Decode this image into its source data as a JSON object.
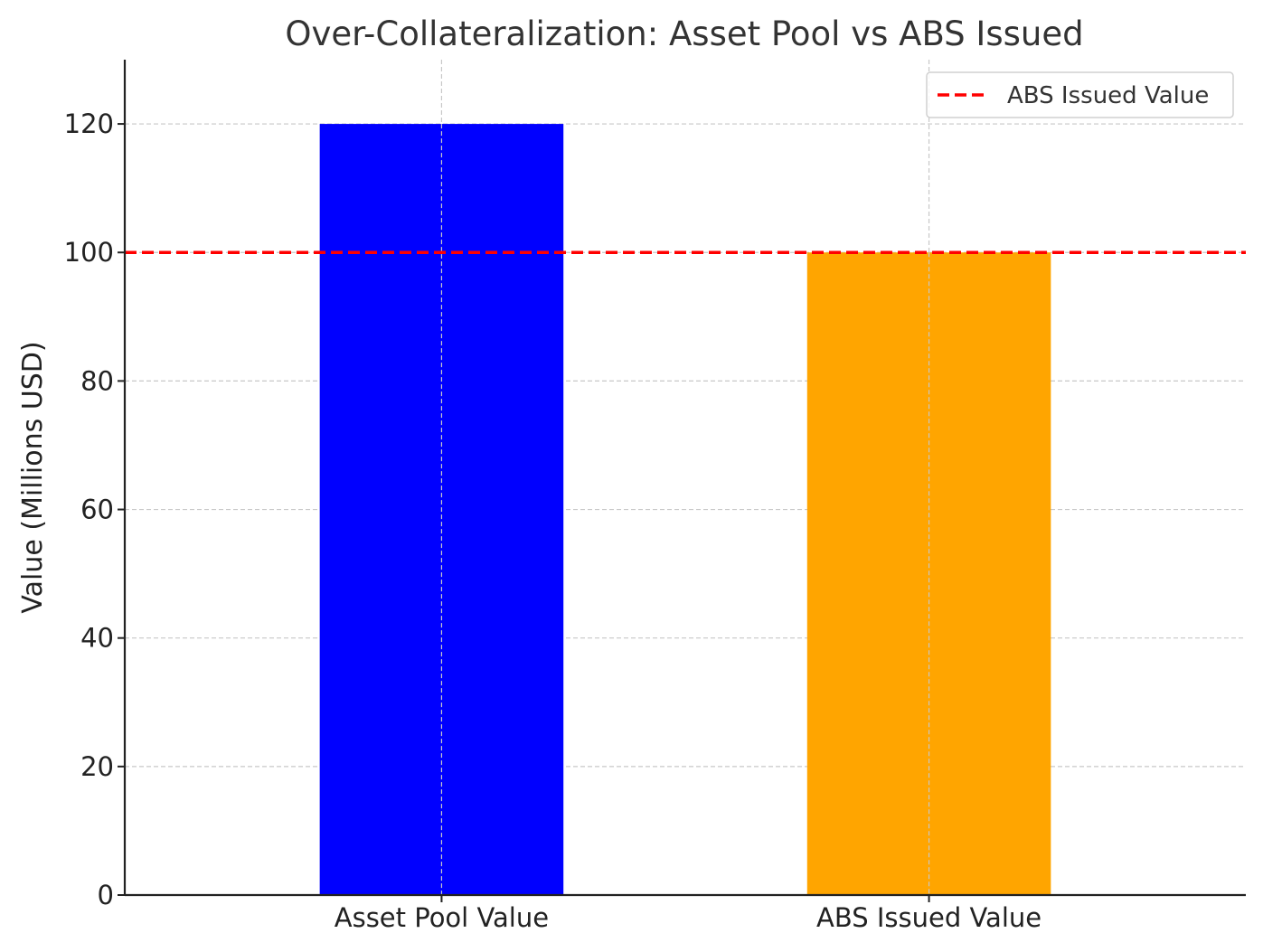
{
  "chart_data": {
    "type": "bar",
    "title": "Over-Collateralization: Asset Pool vs ABS Issued",
    "xlabel": "",
    "ylabel": "Value (Millions USD)",
    "categories": [
      "Asset Pool Value",
      "ABS Issued Value"
    ],
    "values": [
      120,
      100
    ],
    "colors": [
      "#0000ff",
      "#ffa500"
    ],
    "ylim": [
      0,
      130
    ],
    "yticks": [
      0,
      20,
      40,
      60,
      80,
      100,
      120
    ],
    "grid": true,
    "reference_line": {
      "value": 100,
      "label": "ABS Issued Value",
      "color": "#ff0000",
      "style": "dashed"
    },
    "legend": {
      "placement": "top-right",
      "entries": [
        "ABS Issued Value"
      ]
    }
  }
}
